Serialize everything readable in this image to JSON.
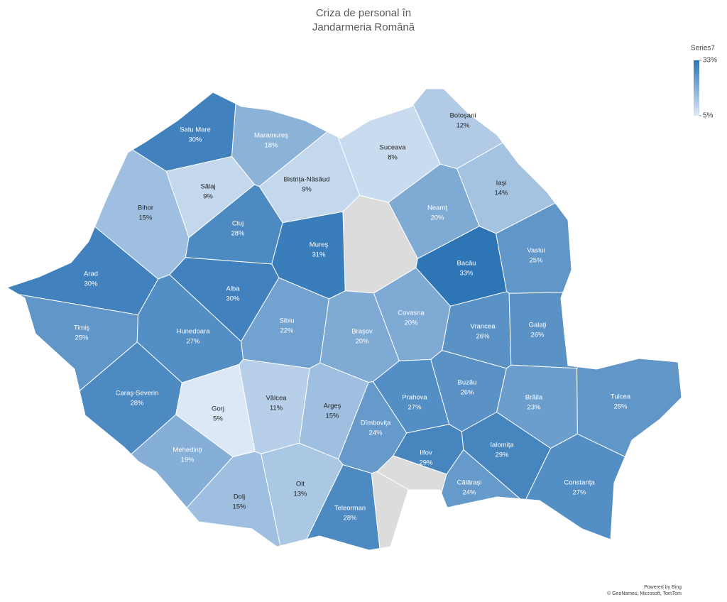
{
  "chart_data": {
    "type": "map",
    "title": [
      "Criza de personal în",
      "Jandarmeria Română"
    ],
    "legend_title": "Series7",
    "categories": [
      "Satu Mare",
      "Maramureş",
      "Botoşani",
      "Suceava",
      "Sălaj",
      "Bistriţa-Năsăud",
      "Iaşi",
      "Bihor",
      "Cluj",
      "Neamţ",
      "Mureş",
      "Bacău",
      "Vaslui",
      "Arad",
      "Alba",
      "Sibiu",
      "Braşov",
      "Covasna",
      "Vrancea",
      "Galaţi",
      "Timiş",
      "Hunedoara",
      "Caraş-Severin",
      "Gorj",
      "Vâlcea",
      "Argeş",
      "Dîmboviţa",
      "Prahova",
      "Buzău",
      "Brăila",
      "Tulcea",
      "Mehedinţi",
      "Ilfov",
      "Ialomiţa",
      "Dolj",
      "Olt",
      "Teleorman",
      "Călăraşi",
      "Constanţa"
    ],
    "values": [
      30,
      18,
      12,
      8,
      9,
      9,
      14,
      15,
      28,
      20,
      31,
      33,
      25,
      30,
      30,
      22,
      20,
      20,
      26,
      26,
      25,
      27,
      28,
      5,
      11,
      15,
      24,
      27,
      26,
      23,
      25,
      19,
      29,
      29,
      15,
      13,
      28,
      24,
      27
    ],
    "value_labels": [
      "30%",
      "18%",
      "12%",
      "8%",
      "9%",
      "9%",
      "14%",
      "15%",
      "28%",
      "20%",
      "31%",
      "33%",
      "25%",
      "30%",
      "30%",
      "22%",
      "20%",
      "20%",
      "26%",
      "26%",
      "25%",
      "27%",
      "28%",
      "5%",
      "11%",
      "15%",
      "24%",
      "27%",
      "26%",
      "23%",
      "25%",
      "19%",
      "29%",
      "29%",
      "15%",
      "13%",
      "28%",
      "24%",
      "27%"
    ],
    "colorlim": [
      5,
      33
    ],
    "colorticks": [
      {
        "value": 33,
        "label": "33%"
      },
      {
        "value": 5,
        "label": "5%"
      }
    ],
    "colors": [
      "#dce8f6",
      "#2e75b6"
    ],
    "no_data_color": "#dcdcdc",
    "attribution": [
      "Powered by Bing",
      "© GeoNames, Microsoft, TomTom"
    ]
  }
}
